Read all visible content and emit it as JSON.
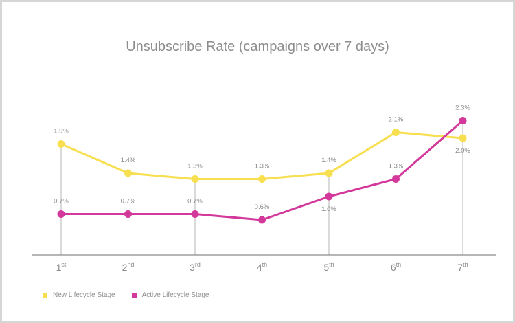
{
  "chart_data": {
    "type": "line",
    "title": "Unsubscribe Rate (campaigns over 7 days)",
    "categories": [
      {
        "num": "1",
        "sup": "st"
      },
      {
        "num": "2",
        "sup": "nd"
      },
      {
        "num": "3",
        "sup": "rd"
      },
      {
        "num": "4",
        "sup": "th"
      },
      {
        "num": "5",
        "sup": "th"
      },
      {
        "num": "6",
        "sup": "th"
      },
      {
        "num": "7",
        "sup": "th"
      }
    ],
    "ylim": [
      0,
      2.6
    ],
    "grid": false,
    "legend_position": "bottom-left",
    "series": [
      {
        "name": "New Lifecycle Stage",
        "color": "#f7df4f",
        "values": [
          1.9,
          1.4,
          1.3,
          1.3,
          1.4,
          2.1,
          2.0
        ],
        "labels": [
          "1.9%",
          "1.4%",
          "1.3%",
          "1.3%",
          "1.4%",
          "2.1%",
          "2.0%"
        ]
      },
      {
        "name": "Active Lifecycle Stage",
        "color": "#d2399a",
        "values": [
          0.7,
          0.7,
          0.7,
          0.6,
          1.0,
          1.3,
          2.3
        ],
        "labels": [
          "0.7%",
          "0.7%",
          "0.7%",
          "0.6%",
          "1.0%",
          "1.3%",
          "2.3%"
        ]
      }
    ]
  }
}
